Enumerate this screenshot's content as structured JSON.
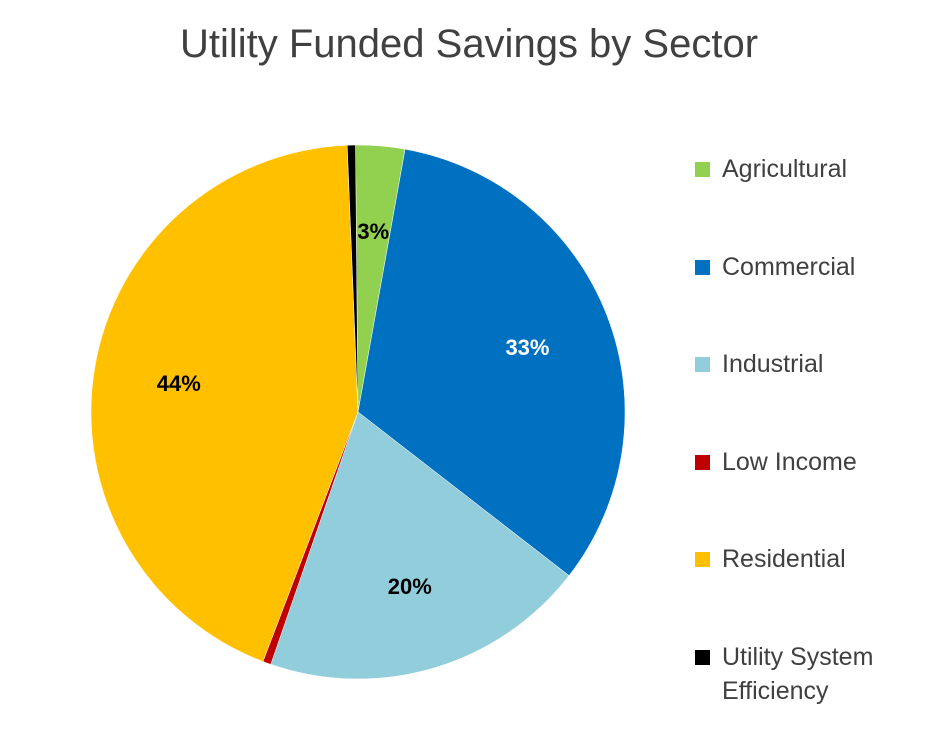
{
  "chart_data": {
    "type": "pie",
    "title": "Utility Funded Savings by Sector",
    "legend_position": "right",
    "slices": [
      {
        "name": "Agricultural",
        "value": 3,
        "label": "3%",
        "color": "#92D050",
        "label_color": "#000000"
      },
      {
        "name": "Commercial",
        "value": 33,
        "label": "33%",
        "color": "#0070C0",
        "label_color": "#ffffff"
      },
      {
        "name": "Industrial",
        "value": 20,
        "label": "20%",
        "color": "#92CDDC",
        "label_color": "#000000"
      },
      {
        "name": "Low Income",
        "value": 0.5,
        "label": "",
        "color": "#C00000",
        "label_color": "#000000"
      },
      {
        "name": "Residential",
        "value": 44,
        "label": "44%",
        "color": "#FFC000",
        "label_color": "#000000"
      },
      {
        "name": "Utility System Efficiency",
        "value": 0.5,
        "label": "",
        "color": "#000000",
        "label_color": "#000000"
      }
    ]
  }
}
